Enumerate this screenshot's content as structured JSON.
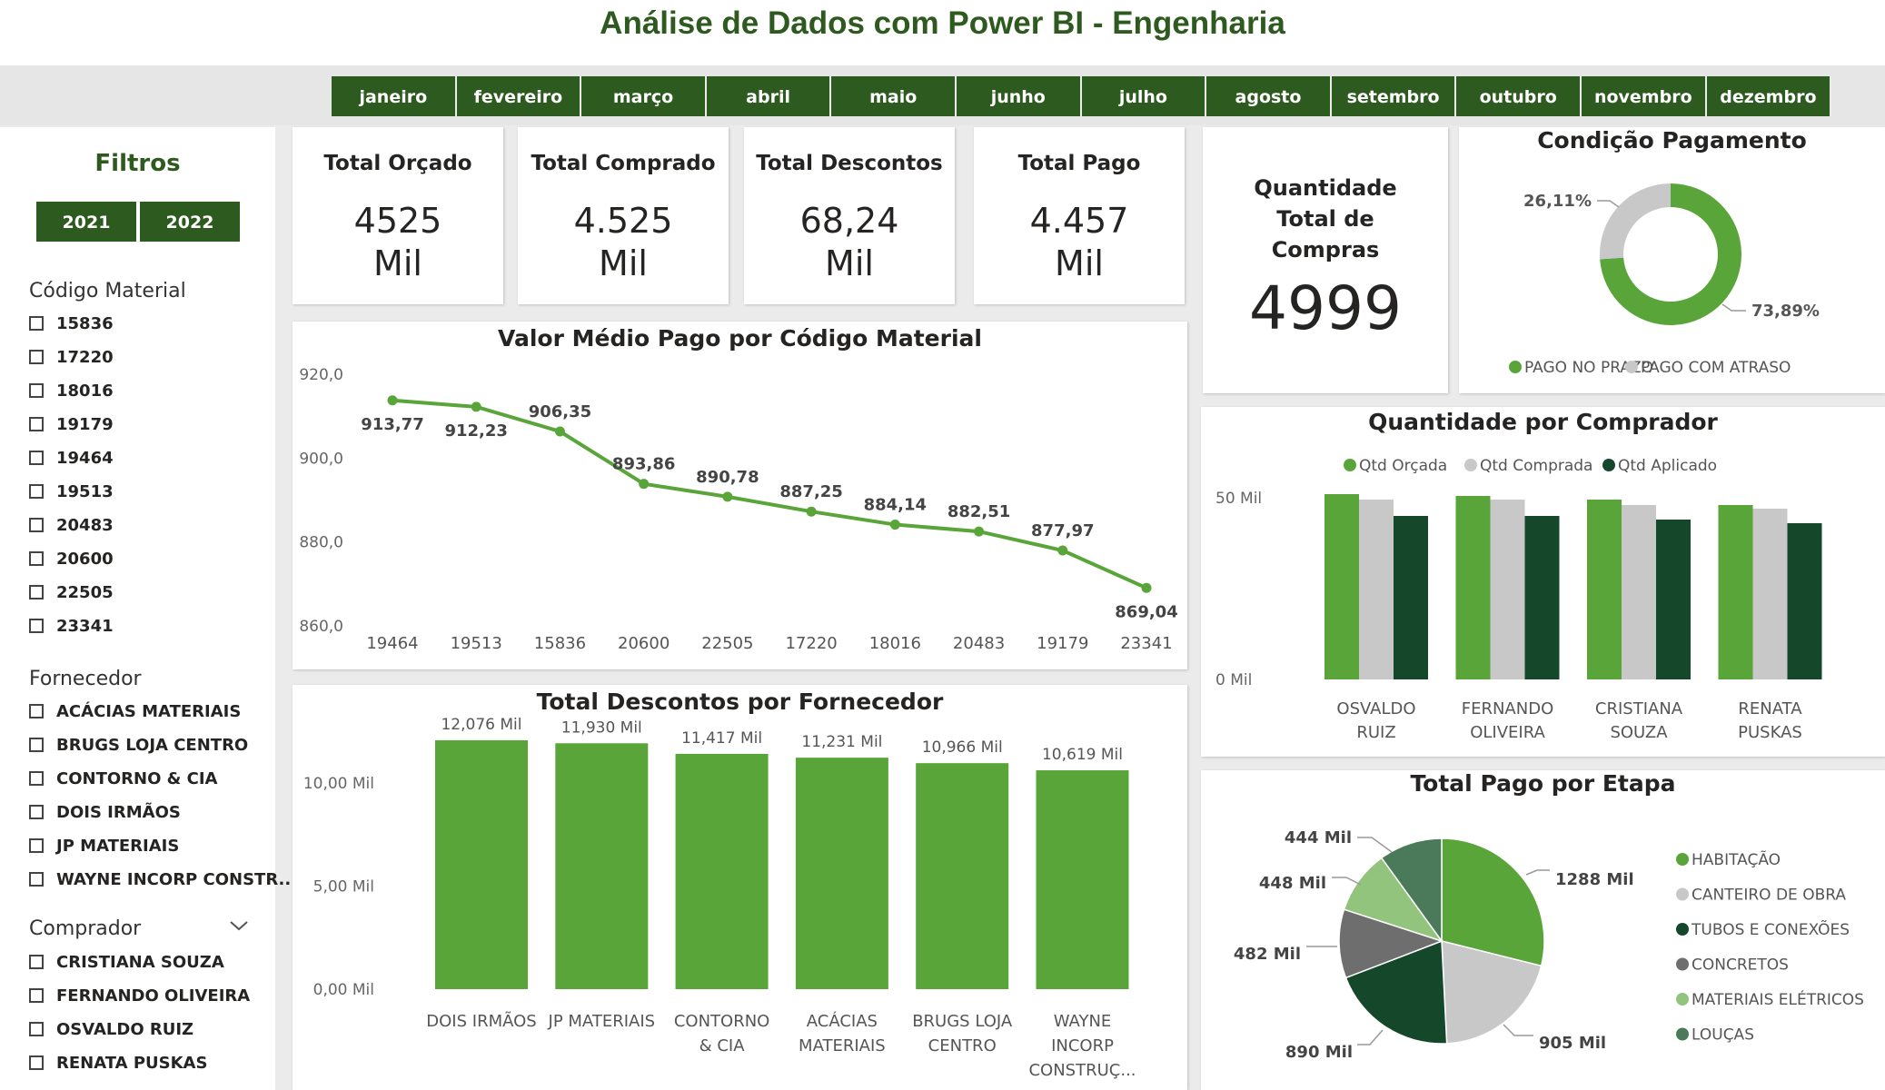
{
  "header": {
    "title": "Análise de Dados com Power BI - Engenharia"
  },
  "months": [
    "janeiro",
    "fevereiro",
    "março",
    "abril",
    "maio",
    "junho",
    "julho",
    "agosto",
    "setembro",
    "outubro",
    "novembro",
    "dezembro"
  ],
  "filters": {
    "title": "Filtros",
    "years": [
      "2021",
      "2022"
    ],
    "codigo": {
      "title": "Código Material",
      "items": [
        "15836",
        "17220",
        "18016",
        "19179",
        "19464",
        "19513",
        "20483",
        "20600",
        "22505",
        "23341"
      ]
    },
    "fornecedor": {
      "title": "Fornecedor",
      "items": [
        "ACÁCIAS MATERIAIS",
        "BRUGS LOJA CENTRO",
        "CONTORNO & CIA",
        "DOIS IRMÃOS",
        "JP MATERIAIS",
        "WAYNE INCORP CONSTR..."
      ]
    },
    "comprador": {
      "title": "Comprador",
      "items": [
        "CRISTIANA SOUZA",
        "FERNANDO OLIVEIRA",
        "OSVALDO RUIZ",
        "RENATA PUSKAS"
      ]
    }
  },
  "kpis": [
    {
      "label": "Total Orçado",
      "value": "4525",
      "unit": "Mil"
    },
    {
      "label": "Total Comprado",
      "value": "4.525",
      "unit": "Mil"
    },
    {
      "label": "Total Descontos",
      "value": "68,24",
      "unit": "Mil"
    },
    {
      "label": "Total Pago",
      "value": "4.457",
      "unit": "Mil"
    }
  ],
  "quantidade": {
    "label": "Quantidade Total de Compras",
    "value": "4999"
  },
  "colors": {
    "green_dark": "#2d5a1f",
    "green": "#5aa53a",
    "gray": "#c8c8c8",
    "dark_green": "#15472b"
  },
  "chart_data": [
    {
      "type": "line",
      "title": "Valor Médio Pago por Código Material",
      "categories": [
        "19464",
        "19513",
        "15836",
        "20600",
        "22505",
        "17220",
        "18016",
        "20483",
        "19179",
        "23341"
      ],
      "values": [
        913.77,
        912.23,
        906.35,
        893.86,
        890.78,
        887.25,
        884.14,
        882.51,
        877.97,
        869.04
      ],
      "labels": [
        "913,77",
        "912,23",
        "906,35",
        "893,86",
        "890,78",
        "887,25",
        "884,14",
        "882,51",
        "877,97",
        "869,04"
      ],
      "yticks": [
        "920,0",
        "900,0",
        "880,0",
        "860,0"
      ],
      "ytick_values": [
        920,
        900,
        880,
        860
      ],
      "ylim": [
        860,
        920
      ]
    },
    {
      "type": "bar",
      "title": "Total Descontos por Fornecedor",
      "categories": [
        [
          "DOIS IRMÃOS"
        ],
        [
          "JP MATERIAIS"
        ],
        [
          "CONTORNO",
          "& CIA"
        ],
        [
          "ACÁCIAS",
          "MATERIAIS"
        ],
        [
          "BRUGS LOJA",
          "CENTRO"
        ],
        [
          "WAYNE",
          "INCORP",
          "CONSTRUÇ..."
        ]
      ],
      "values": [
        12.076,
        11.93,
        11.417,
        11.231,
        10.966,
        10.619
      ],
      "labels": [
        "12,076 Mil",
        "11,930 Mil",
        "11,417 Mil",
        "11,231 Mil",
        "10,966 Mil",
        "10,619 Mil"
      ],
      "yticks": [
        "10,00 Mil",
        "5,00 Mil",
        "0,00 Mil"
      ],
      "ytick_values": [
        10,
        5,
        0
      ],
      "ylim": [
        0,
        13
      ]
    },
    {
      "type": "pie",
      "title": "Condição Pagamento",
      "donut": true,
      "slices": [
        {
          "name": "PAGO NO PRAZO",
          "value": 73.89,
          "label": "73,89%",
          "color": "#5aa53a"
        },
        {
          "name": "PAGO COM ATRASO",
          "value": 26.11,
          "label": "26,11%",
          "color": "#c8c8c8"
        }
      ]
    },
    {
      "type": "bar",
      "title": "Quantidade por Comprador",
      "categories": [
        [
          "OSVALDO",
          "RUIZ"
        ],
        [
          "FERNANDO",
          "OLIVEIRA"
        ],
        [
          "CRISTIANA",
          "SOUZA"
        ],
        [
          "RENATA",
          "PUSKAS"
        ]
      ],
      "series": [
        {
          "name": "Qtd Orçada",
          "color": "#5aa53a",
          "values": [
            51,
            50.5,
            49.5,
            48
          ]
        },
        {
          "name": "Qtd Comprada",
          "color": "#c8c8c8",
          "values": [
            49.5,
            49.5,
            48,
            47
          ]
        },
        {
          "name": "Qtd Aplicado",
          "color": "#15472b",
          "values": [
            45,
            45,
            44,
            43
          ]
        }
      ],
      "yticks": [
        "50 Mil",
        "0 Mil"
      ],
      "ytick_values": [
        50,
        0
      ],
      "ylim": [
        0,
        60
      ]
    },
    {
      "type": "pie",
      "title": "Total Pago por Etapa",
      "slices": [
        {
          "name": "HABITAÇÃO",
          "value": 1288,
          "label": "1288 Mil",
          "color": "#5aa53a"
        },
        {
          "name": "CANTEIRO DE OBRA",
          "value": 905,
          "label": "905 Mil",
          "color": "#c8c8c8"
        },
        {
          "name": "TUBOS E CONEXÕES",
          "value": 890,
          "label": "890 Mil",
          "color": "#15472b"
        },
        {
          "name": "CONCRETOS",
          "value": 482,
          "label": "482 Mil",
          "color": "#6e6e6e"
        },
        {
          "name": "MATERIAIS ELÉTRICOS",
          "value": 448,
          "label": "448 Mil",
          "color": "#93c47d"
        },
        {
          "name": "LOUÇAS",
          "value": 444,
          "label": "444 Mil",
          "color": "#4a7a5a"
        }
      ]
    }
  ]
}
